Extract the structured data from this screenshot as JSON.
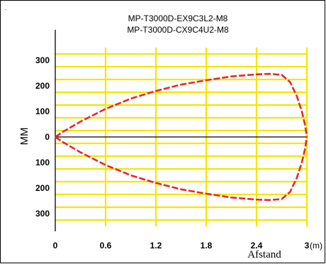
{
  "chart_data": {
    "type": "line",
    "title_lines": [
      "MP-T3000D-EX9C3L2-M8",
      "MP-T3000D-CX9C4U2-M8"
    ],
    "ylabel": "MM",
    "xlabel": "Afstand",
    "x_unit": "(m)",
    "xlim": [
      0,
      3
    ],
    "ylim": [
      -350,
      350
    ],
    "x_ticks": [
      0,
      0.6,
      1.2,
      1.8,
      2.4,
      3
    ],
    "x_tick_labels": [
      "0",
      "0.6",
      "1.2",
      "1.8",
      "2.4",
      "3"
    ],
    "y_ticks": [
      300,
      200,
      100,
      0,
      -100,
      -200,
      -300
    ],
    "y_tick_labels": [
      "300",
      "200",
      "100",
      "0",
      "100",
      "200",
      "300"
    ],
    "grid": true,
    "grid_color": "#f5e600",
    "curve_color": "#e8272a",
    "axis_color": "#000000",
    "corner_mark": ".",
    "series": [
      {
        "x": [
          0,
          0.1,
          0.3,
          0.6,
          0.9,
          1.2,
          1.5,
          1.8,
          2.1,
          2.4,
          2.55,
          2.7,
          2.8,
          2.88,
          2.94,
          2.98,
          3.0
        ],
        "y": [
          0,
          22,
          60,
          110,
          150,
          180,
          205,
          222,
          237,
          245,
          247,
          243,
          215,
          160,
          100,
          45,
          0
        ]
      },
      {
        "x": [
          0,
          0.1,
          0.3,
          0.6,
          0.9,
          1.2,
          1.5,
          1.8,
          2.1,
          2.4,
          2.55,
          2.7,
          2.8,
          2.88,
          2.94,
          2.98,
          3.0
        ],
        "y": [
          0,
          -22,
          -60,
          -110,
          -150,
          -180,
          -205,
          -222,
          -237,
          -245,
          -247,
          -243,
          -215,
          -160,
          -100,
          -45,
          0
        ]
      }
    ]
  }
}
